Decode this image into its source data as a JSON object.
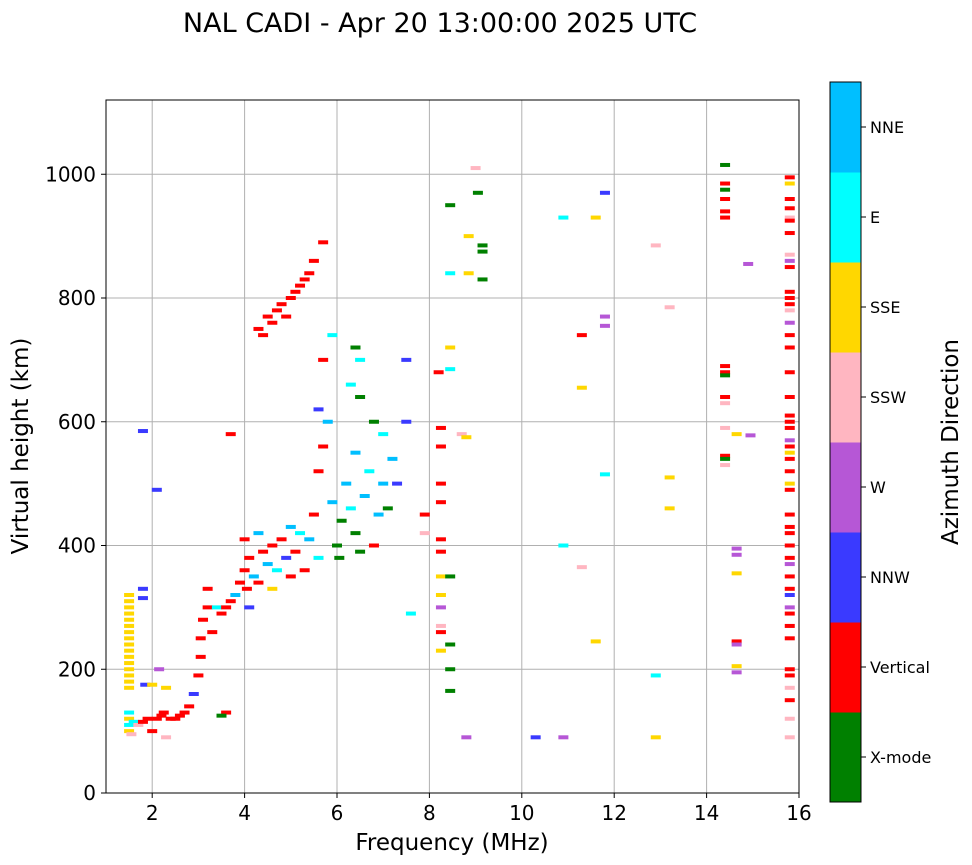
{
  "chart_data": {
    "type": "scatter",
    "title": "NAL CADI - Apr 20 13:00:00 2025 UTC",
    "xlabel": "Frequency (MHz)",
    "ylabel": "Virtual height (km)",
    "xlim": [
      1,
      16
    ],
    "ylim": [
      0,
      1120
    ],
    "xticks": [
      2,
      4,
      6,
      8,
      10,
      12,
      14,
      16
    ],
    "yticks": [
      0,
      200,
      400,
      600,
      800,
      1000
    ],
    "grid": true,
    "colorbar": {
      "label": "Azimuth Direction",
      "categories": [
        {
          "name": "X-mode",
          "color": "#008000"
        },
        {
          "name": "Vertical",
          "color": "#ff0000"
        },
        {
          "name": "NNW",
          "color": "#3a3aff"
        },
        {
          "name": "W",
          "color": "#b657d6"
        },
        {
          "name": "SSW",
          "color": "#ffb6c1"
        },
        {
          "name": "SSE",
          "color": "#ffd700"
        },
        {
          "name": "E",
          "color": "#00ffff"
        },
        {
          "name": "NNE",
          "color": "#00bfff"
        }
      ]
    },
    "points": [
      [
        1.5,
        320,
        "SSE"
      ],
      [
        1.5,
        310,
        "SSE"
      ],
      [
        1.5,
        300,
        "SSE"
      ],
      [
        1.5,
        290,
        "SSE"
      ],
      [
        1.5,
        280,
        "SSE"
      ],
      [
        1.5,
        270,
        "SSE"
      ],
      [
        1.5,
        260,
        "SSE"
      ],
      [
        1.5,
        250,
        "SSE"
      ],
      [
        1.5,
        240,
        "SSE"
      ],
      [
        1.5,
        230,
        "SSE"
      ],
      [
        1.5,
        220,
        "SSE"
      ],
      [
        1.5,
        210,
        "SSE"
      ],
      [
        1.5,
        200,
        "SSE"
      ],
      [
        1.5,
        190,
        "SSE"
      ],
      [
        1.5,
        180,
        "SSE"
      ],
      [
        1.5,
        170,
        "SSE"
      ],
      [
        1.5,
        130,
        "E"
      ],
      [
        1.5,
        120,
        "SSE"
      ],
      [
        1.5,
        110,
        "E"
      ],
      [
        1.5,
        100,
        "SSE"
      ],
      [
        1.55,
        95,
        "SSW"
      ],
      [
        1.6,
        115,
        "E"
      ],
      [
        1.7,
        110,
        "SSW"
      ],
      [
        1.8,
        115,
        "Vertical"
      ],
      [
        1.8,
        330,
        "NNW"
      ],
      [
        1.8,
        315,
        "NNW"
      ],
      [
        1.85,
        175,
        "NNW"
      ],
      [
        1.9,
        120,
        "Vertical"
      ],
      [
        2.0,
        100,
        "Vertical"
      ],
      [
        2.0,
        175,
        "SSE"
      ],
      [
        2.1,
        120,
        "Vertical"
      ],
      [
        2.1,
        490,
        "NNW"
      ],
      [
        2.15,
        200,
        "W"
      ],
      [
        2.2,
        125,
        "Vertical"
      ],
      [
        2.25,
        130,
        "Vertical"
      ],
      [
        2.3,
        170,
        "SSE"
      ],
      [
        2.3,
        90,
        "SSW"
      ],
      [
        2.4,
        120,
        "Vertical"
      ],
      [
        2.5,
        120,
        "Vertical"
      ],
      [
        2.6,
        125,
        "Vertical"
      ],
      [
        2.7,
        130,
        "Vertical"
      ],
      [
        2.8,
        140,
        "Vertical"
      ],
      [
        2.9,
        160,
        "NNW"
      ],
      [
        1.8,
        585,
        "NNW"
      ],
      [
        3.0,
        190,
        "Vertical"
      ],
      [
        3.05,
        220,
        "Vertical"
      ],
      [
        3.05,
        250,
        "Vertical"
      ],
      [
        3.1,
        280,
        "Vertical"
      ],
      [
        3.2,
        300,
        "Vertical"
      ],
      [
        3.2,
        330,
        "Vertical"
      ],
      [
        3.3,
        260,
        "Vertical"
      ],
      [
        3.4,
        300,
        "E"
      ],
      [
        3.5,
        290,
        "Vertical"
      ],
      [
        3.6,
        300,
        "Vertical"
      ],
      [
        3.6,
        130,
        "Vertical"
      ],
      [
        3.5,
        125,
        "X-mode"
      ],
      [
        3.7,
        310,
        "Vertical"
      ],
      [
        3.7,
        580,
        "Vertical"
      ],
      [
        3.8,
        320,
        "NNE"
      ],
      [
        3.9,
        340,
        "Vertical"
      ],
      [
        4.0,
        360,
        "Vertical"
      ],
      [
        4.0,
        410,
        "Vertical"
      ],
      [
        4.05,
        330,
        "Vertical"
      ],
      [
        4.1,
        380,
        "Vertical"
      ],
      [
        4.1,
        300,
        "NNW"
      ],
      [
        4.2,
        350,
        "NNE"
      ],
      [
        4.3,
        420,
        "NNE"
      ],
      [
        4.3,
        340,
        "Vertical"
      ],
      [
        4.4,
        390,
        "Vertical"
      ],
      [
        4.5,
        370,
        "NNE"
      ],
      [
        4.6,
        400,
        "Vertical"
      ],
      [
        4.6,
        330,
        "SSE"
      ],
      [
        4.7,
        360,
        "E"
      ],
      [
        4.8,
        410,
        "Vertical"
      ],
      [
        4.9,
        380,
        "NNW"
      ],
      [
        5.0,
        430,
        "NNE"
      ],
      [
        5.0,
        350,
        "Vertical"
      ],
      [
        5.1,
        390,
        "Vertical"
      ],
      [
        5.2,
        420,
        "E"
      ],
      [
        5.3,
        360,
        "Vertical"
      ],
      [
        5.4,
        410,
        "NNE"
      ],
      [
        5.5,
        450,
        "Vertical"
      ],
      [
        5.6,
        380,
        "E"
      ],
      [
        5.6,
        520,
        "Vertical"
      ],
      [
        5.7,
        560,
        "Vertical"
      ],
      [
        5.8,
        600,
        "NNE"
      ],
      [
        4.3,
        750,
        "Vertical"
      ],
      [
        4.4,
        740,
        "Vertical"
      ],
      [
        4.5,
        770,
        "Vertical"
      ],
      [
        4.6,
        760,
        "Vertical"
      ],
      [
        4.7,
        780,
        "Vertical"
      ],
      [
        4.8,
        790,
        "Vertical"
      ],
      [
        4.9,
        770,
        "Vertical"
      ],
      [
        5.0,
        800,
        "Vertical"
      ],
      [
        5.1,
        810,
        "Vertical"
      ],
      [
        5.2,
        820,
        "Vertical"
      ],
      [
        5.3,
        830,
        "Vertical"
      ],
      [
        5.4,
        840,
        "Vertical"
      ],
      [
        5.5,
        860,
        "Vertical"
      ],
      [
        5.7,
        890,
        "Vertical"
      ],
      [
        5.9,
        470,
        "NNE"
      ],
      [
        6.0,
        400,
        "X-mode"
      ],
      [
        6.05,
        380,
        "X-mode"
      ],
      [
        6.1,
        440,
        "X-mode"
      ],
      [
        6.2,
        500,
        "NNE"
      ],
      [
        6.3,
        460,
        "E"
      ],
      [
        6.4,
        420,
        "X-mode"
      ],
      [
        6.4,
        550,
        "NNE"
      ],
      [
        6.5,
        390,
        "X-mode"
      ],
      [
        6.5,
        640,
        "X-mode"
      ],
      [
        6.6,
        480,
        "NNE"
      ],
      [
        6.7,
        520,
        "E"
      ],
      [
        6.8,
        400,
        "Vertical"
      ],
      [
        6.8,
        600,
        "X-mode"
      ],
      [
        6.9,
        450,
        "NNE"
      ],
      [
        7.0,
        500,
        "NNE"
      ],
      [
        7.0,
        580,
        "E"
      ],
      [
        7.1,
        460,
        "X-mode"
      ],
      [
        7.2,
        540,
        "NNE"
      ],
      [
        7.3,
        500,
        "NNW"
      ],
      [
        7.5,
        600,
        "NNW"
      ],
      [
        7.5,
        700,
        "NNW"
      ],
      [
        6.4,
        720,
        "X-mode"
      ],
      [
        6.5,
        700,
        "E"
      ],
      [
        6.3,
        660,
        "E"
      ],
      [
        5.9,
        740,
        "E"
      ],
      [
        5.7,
        700,
        "Vertical"
      ],
      [
        5.6,
        620,
        "NNW"
      ],
      [
        7.6,
        290,
        "E"
      ],
      [
        7.9,
        450,
        "Vertical"
      ],
      [
        7.9,
        420,
        "SSW"
      ],
      [
        8.2,
        680,
        "Vertical"
      ],
      [
        8.25,
        590,
        "Vertical"
      ],
      [
        8.25,
        560,
        "Vertical"
      ],
      [
        8.25,
        500,
        "Vertical"
      ],
      [
        8.25,
        470,
        "Vertical"
      ],
      [
        8.25,
        410,
        "Vertical"
      ],
      [
        8.25,
        390,
        "Vertical"
      ],
      [
        8.25,
        350,
        "SSE"
      ],
      [
        8.25,
        320,
        "SSE"
      ],
      [
        8.25,
        300,
        "W"
      ],
      [
        8.25,
        270,
        "SSW"
      ],
      [
        8.25,
        260,
        "Vertical"
      ],
      [
        8.25,
        230,
        "SSE"
      ],
      [
        8.45,
        840,
        "E"
      ],
      [
        8.45,
        720,
        "SSE"
      ],
      [
        8.45,
        685,
        "E"
      ],
      [
        8.45,
        350,
        "X-mode"
      ],
      [
        8.45,
        240,
        "X-mode"
      ],
      [
        8.45,
        200,
        "X-mode"
      ],
      [
        8.45,
        165,
        "X-mode"
      ],
      [
        8.45,
        950,
        "X-mode"
      ],
      [
        8.7,
        580,
        "SSW"
      ],
      [
        8.8,
        575,
        "SSE"
      ],
      [
        8.8,
        90,
        "W"
      ],
      [
        8.85,
        900,
        "SSE"
      ],
      [
        8.85,
        840,
        "SSE"
      ],
      [
        9.0,
        1010,
        "SSW"
      ],
      [
        9.05,
        970,
        "X-mode"
      ],
      [
        9.15,
        885,
        "X-mode"
      ],
      [
        9.15,
        875,
        "X-mode"
      ],
      [
        9.15,
        830,
        "X-mode"
      ],
      [
        10.3,
        90,
        "NNW"
      ],
      [
        10.9,
        930,
        "E"
      ],
      [
        10.9,
        400,
        "E"
      ],
      [
        10.9,
        90,
        "W"
      ],
      [
        11.3,
        740,
        "Vertical"
      ],
      [
        11.3,
        655,
        "SSE"
      ],
      [
        11.3,
        365,
        "SSW"
      ],
      [
        11.6,
        930,
        "SSE"
      ],
      [
        11.6,
        245,
        "SSE"
      ],
      [
        11.8,
        970,
        "NNW"
      ],
      [
        11.8,
        770,
        "W"
      ],
      [
        11.8,
        755,
        "W"
      ],
      [
        11.8,
        515,
        "E"
      ],
      [
        12.9,
        885,
        "SSW"
      ],
      [
        12.9,
        190,
        "E"
      ],
      [
        12.9,
        90,
        "SSE"
      ],
      [
        13.2,
        785,
        "SSW"
      ],
      [
        13.2,
        510,
        "SSE"
      ],
      [
        13.2,
        460,
        "SSE"
      ],
      [
        14.4,
        1015,
        "X-mode"
      ],
      [
        14.4,
        985,
        "Vertical"
      ],
      [
        14.4,
        975,
        "X-mode"
      ],
      [
        14.4,
        960,
        "Vertical"
      ],
      [
        14.4,
        940,
        "Vertical"
      ],
      [
        14.4,
        930,
        "Vertical"
      ],
      [
        14.4,
        690,
        "Vertical"
      ],
      [
        14.4,
        680,
        "Vertical"
      ],
      [
        14.4,
        675,
        "X-mode"
      ],
      [
        14.4,
        640,
        "Vertical"
      ],
      [
        14.4,
        630,
        "SSW"
      ],
      [
        14.4,
        590,
        "SSW"
      ],
      [
        14.4,
        545,
        "Vertical"
      ],
      [
        14.4,
        540,
        "X-mode"
      ],
      [
        14.4,
        530,
        "SSW"
      ],
      [
        14.65,
        580,
        "SSE"
      ],
      [
        14.65,
        395,
        "W"
      ],
      [
        14.65,
        385,
        "W"
      ],
      [
        14.65,
        355,
        "SSE"
      ],
      [
        14.65,
        245,
        "Vertical"
      ],
      [
        14.65,
        240,
        "W"
      ],
      [
        14.65,
        205,
        "SSE"
      ],
      [
        14.65,
        195,
        "W"
      ],
      [
        14.9,
        855,
        "W"
      ],
      [
        14.95,
        578,
        "W"
      ],
      [
        15.8,
        995,
        "Vertical"
      ],
      [
        15.8,
        985,
        "SSE"
      ],
      [
        15.8,
        960,
        "Vertical"
      ],
      [
        15.8,
        945,
        "Vertical"
      ],
      [
        15.8,
        930,
        "SSW"
      ],
      [
        15.8,
        925,
        "Vertical"
      ],
      [
        15.8,
        905,
        "Vertical"
      ],
      [
        15.8,
        870,
        "SSW"
      ],
      [
        15.8,
        860,
        "W"
      ],
      [
        15.8,
        850,
        "Vertical"
      ],
      [
        15.8,
        810,
        "Vertical"
      ],
      [
        15.8,
        800,
        "Vertical"
      ],
      [
        15.8,
        790,
        "Vertical"
      ],
      [
        15.8,
        780,
        "SSW"
      ],
      [
        15.8,
        760,
        "W"
      ],
      [
        15.8,
        740,
        "Vertical"
      ],
      [
        15.8,
        720,
        "Vertical"
      ],
      [
        15.8,
        680,
        "Vertical"
      ],
      [
        15.8,
        640,
        "Vertical"
      ],
      [
        15.8,
        610,
        "Vertical"
      ],
      [
        15.8,
        600,
        "Vertical"
      ],
      [
        15.8,
        590,
        "Vertical"
      ],
      [
        15.8,
        570,
        "W"
      ],
      [
        15.8,
        560,
        "Vertical"
      ],
      [
        15.8,
        550,
        "SSE"
      ],
      [
        15.8,
        540,
        "Vertical"
      ],
      [
        15.8,
        520,
        "Vertical"
      ],
      [
        15.8,
        500,
        "SSE"
      ],
      [
        15.8,
        490,
        "Vertical"
      ],
      [
        15.8,
        450,
        "Vertical"
      ],
      [
        15.8,
        430,
        "Vertical"
      ],
      [
        15.8,
        420,
        "Vertical"
      ],
      [
        15.8,
        400,
        "Vertical"
      ],
      [
        15.8,
        380,
        "Vertical"
      ],
      [
        15.8,
        370,
        "W"
      ],
      [
        15.8,
        350,
        "Vertical"
      ],
      [
        15.8,
        330,
        "Vertical"
      ],
      [
        15.8,
        320,
        "NNW"
      ],
      [
        15.8,
        300,
        "W"
      ],
      [
        15.8,
        290,
        "Vertical"
      ],
      [
        15.8,
        270,
        "Vertical"
      ],
      [
        15.8,
        250,
        "Vertical"
      ],
      [
        15.8,
        200,
        "Vertical"
      ],
      [
        15.8,
        190,
        "Vertical"
      ],
      [
        15.8,
        170,
        "SSW"
      ],
      [
        15.8,
        150,
        "Vertical"
      ],
      [
        15.8,
        120,
        "SSW"
      ],
      [
        15.8,
        90,
        "SSW"
      ]
    ]
  }
}
